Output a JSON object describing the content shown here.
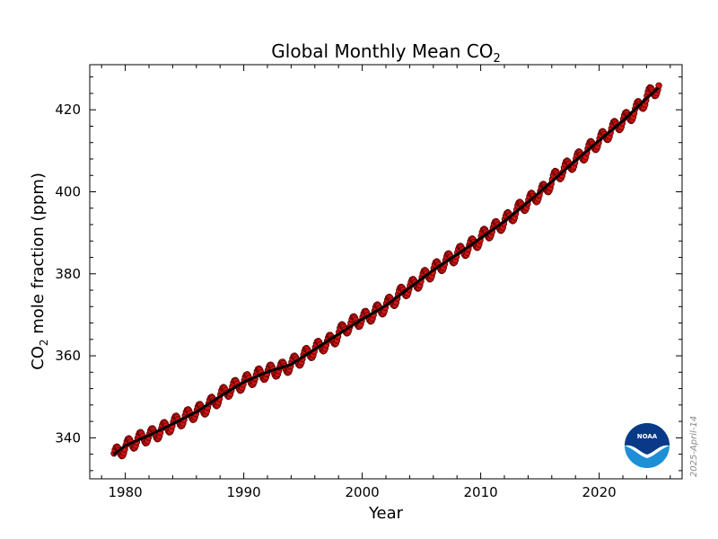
{
  "page": {
    "date_stamp": "2025-April-14",
    "logo_text": "NOAA",
    "colors": {
      "point_fill": "#d21414",
      "point_edge": "#5a0000",
      "trend": "#000000",
      "noaa_dark": "#0a3a87",
      "noaa_light": "#1d8fd6"
    }
  },
  "chart_data": {
    "type": "scatter",
    "title_main": "Global Monthly Mean CO",
    "title_sub": "2",
    "xlabel": "Year",
    "ylabel_main": "CO",
    "ylabel_sub": "2",
    "ylabel_rest": " mole fraction (ppm)",
    "xlim": [
      1977,
      2027
    ],
    "ylim": [
      330,
      431
    ],
    "x_ticks": [
      1980,
      1990,
      2000,
      2010,
      2020
    ],
    "x_tick_labels": [
      "1980",
      "1990",
      "2000",
      "2010",
      "2020"
    ],
    "y_ticks": [
      340,
      360,
      380,
      400,
      420
    ],
    "y_tick_labels": [
      "340",
      "360",
      "380",
      "400",
      "420"
    ],
    "grid": false,
    "legend": "none",
    "series": [
      {
        "role": "monthly_mean_points",
        "x_start": 1979.042,
        "x_step": 0.08333,
        "seasonal_amplitude_ppm": 1.6,
        "annual_points": [
          [
            1979.5,
            336.7
          ],
          [
            1980.5,
            338.7
          ],
          [
            1981.5,
            340.1
          ],
          [
            1982.5,
            340.9
          ],
          [
            1983.5,
            342.6
          ],
          [
            1984.5,
            344.1
          ],
          [
            1985.5,
            345.7
          ],
          [
            1986.5,
            346.9
          ],
          [
            1987.5,
            348.8
          ],
          [
            1988.5,
            351.3
          ],
          [
            1989.5,
            352.8
          ],
          [
            1990.5,
            354.2
          ],
          [
            1991.5,
            355.6
          ],
          [
            1992.5,
            356.4
          ],
          [
            1993.5,
            357.1
          ],
          [
            1994.5,
            358.8
          ],
          [
            1995.5,
            360.7
          ],
          [
            1996.5,
            362.4
          ],
          [
            1997.5,
            363.8
          ],
          [
            1998.5,
            366.7
          ],
          [
            1999.5,
            368.4
          ],
          [
            2000.5,
            369.6
          ],
          [
            2001.5,
            371.3
          ],
          [
            2002.5,
            373.2
          ],
          [
            2003.5,
            375.8
          ],
          [
            2004.5,
            377.5
          ],
          [
            2005.5,
            379.8
          ],
          [
            2006.5,
            381.9
          ],
          [
            2007.5,
            383.8
          ],
          [
            2008.5,
            385.6
          ],
          [
            2009.5,
            387.4
          ],
          [
            2010.5,
            389.9
          ],
          [
            2011.5,
            391.6
          ],
          [
            2012.5,
            393.9
          ],
          [
            2013.5,
            396.5
          ],
          [
            2014.5,
            398.6
          ],
          [
            2015.5,
            400.8
          ],
          [
            2016.5,
            404.2
          ],
          [
            2017.5,
            406.5
          ],
          [
            2018.5,
            408.7
          ],
          [
            2019.5,
            411.3
          ],
          [
            2020.5,
            413.7
          ],
          [
            2021.5,
            416.2
          ],
          [
            2022.5,
            418.3
          ],
          [
            2023.5,
            421.1
          ],
          [
            2024.5,
            424.6
          ],
          [
            2025.1,
            425.6
          ]
        ]
      },
      {
        "role": "trend_line",
        "points": [
          [
            1979.0,
            335.9
          ],
          [
            1980.0,
            338.1
          ],
          [
            1982.0,
            340.6
          ],
          [
            1984.0,
            343.4
          ],
          [
            1986.0,
            346.3
          ],
          [
            1988.0,
            350.1
          ],
          [
            1990.0,
            353.6
          ],
          [
            1992.0,
            356.1
          ],
          [
            1994.0,
            357.9
          ],
          [
            1996.0,
            361.6
          ],
          [
            1998.0,
            365.3
          ],
          [
            2000.0,
            368.9
          ],
          [
            2002.0,
            372.3
          ],
          [
            2004.0,
            376.6
          ],
          [
            2006.0,
            380.9
          ],
          [
            2008.0,
            384.7
          ],
          [
            2010.0,
            388.7
          ],
          [
            2012.0,
            392.8
          ],
          [
            2014.0,
            397.5
          ],
          [
            2016.0,
            402.5
          ],
          [
            2018.0,
            407.6
          ],
          [
            2020.0,
            412.5
          ],
          [
            2022.0,
            417.3
          ],
          [
            2024.0,
            422.8
          ],
          [
            2025.0,
            425.3
          ]
        ]
      }
    ]
  }
}
